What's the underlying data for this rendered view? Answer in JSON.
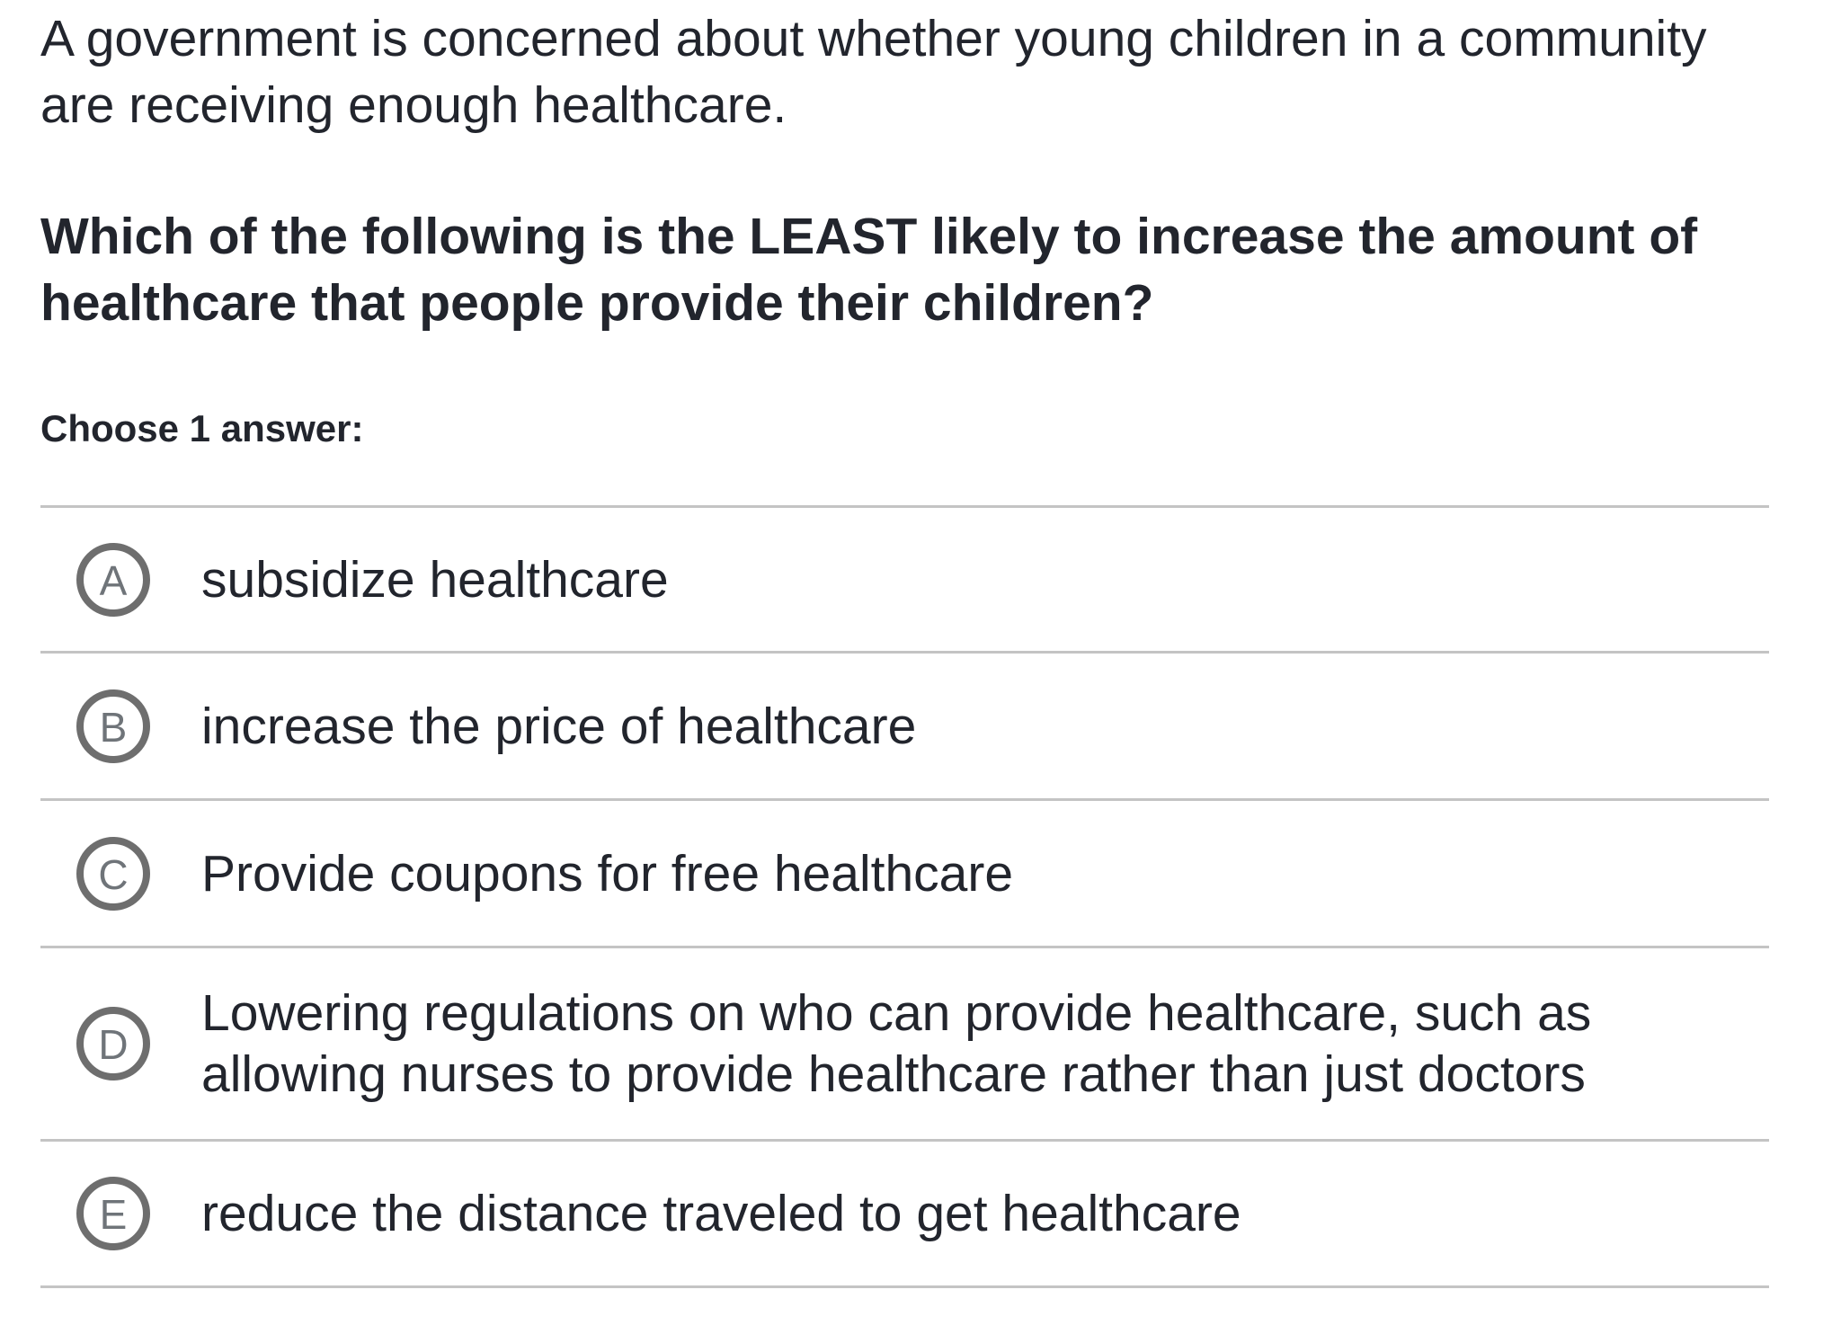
{
  "question": {
    "intro_lines": [
      "A government is concerned about whether young children in a community",
      "are receiving enough healthcare."
    ],
    "prompt_lines": [
      "Which of the following is the LEAST likely to increase the amount of",
      "healthcare that people provide their children?"
    ],
    "choose_label": "Choose 1 answer:"
  },
  "options": [
    {
      "letter": "A",
      "text_lines": [
        "subsidize healthcare"
      ]
    },
    {
      "letter": "B",
      "text_lines": [
        "increase the price of healthcare"
      ]
    },
    {
      "letter": "C",
      "text_lines": [
        "Provide coupons for free healthcare"
      ]
    },
    {
      "letter": "D",
      "text_lines": [
        "Lowering regulations on who can provide healthcare, such as",
        "allowing nurses to provide healthcare rather than just doctors"
      ]
    },
    {
      "letter": "E",
      "text_lines": [
        "reduce the distance traveled to get healthcare"
      ]
    }
  ],
  "colors": {
    "background": "#ffffff",
    "text": "#22252d",
    "radio_ring": "#6e6e6e",
    "radio_letter": "#6f7479",
    "divider": "#c4c4c4"
  }
}
